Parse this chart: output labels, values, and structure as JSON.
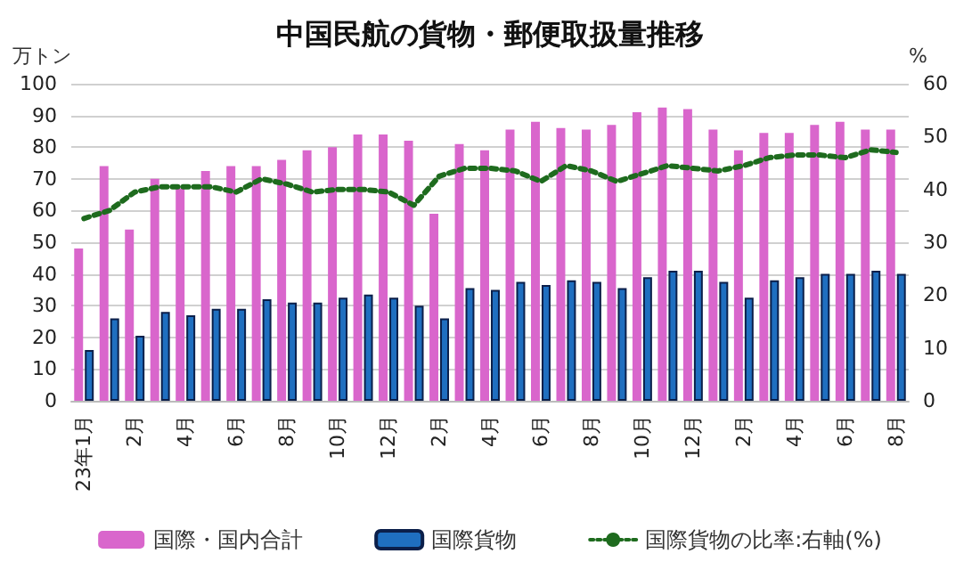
{
  "chart_data": {
    "type": "bar",
    "title": "中国民航の貨物・郵便取扱量推移",
    "ylabel": "万トン",
    "y2label": "%",
    "categories": [
      "23年1月",
      null,
      "2月",
      null,
      "4月",
      null,
      "6月",
      null,
      "8月",
      null,
      "10月",
      null,
      "12月",
      null,
      "2月",
      null,
      "4月",
      null,
      "6月",
      null,
      "8月",
      null,
      "10月",
      null,
      "12月",
      null,
      "2月",
      null,
      "4月",
      null,
      "6月",
      null,
      "8月"
    ],
    "series": [
      {
        "name": "国際・国内合計",
        "color": "#d966cc",
        "values": [
          48,
          74,
          54,
          70,
          67,
          72.5,
          74,
          74,
          76,
          79,
          80,
          84,
          84,
          82,
          59,
          81,
          79,
          85.5,
          88,
          86,
          85.5,
          87,
          91,
          92.5,
          92,
          85.5,
          79,
          84.5,
          84.5,
          87,
          88,
          85.5,
          85.5
        ]
      },
      {
        "name": "国際貨物",
        "color": "#1f6fc0",
        "values": [
          16,
          26,
          20.5,
          28,
          27,
          29,
          29,
          32,
          31,
          31,
          32.5,
          33.5,
          32.5,
          30,
          26,
          35.5,
          35,
          37.5,
          36.5,
          38,
          37.5,
          35.5,
          39,
          41,
          41,
          37.5,
          32.5,
          38,
          39,
          40,
          40,
          41,
          40
        ]
      },
      {
        "name": "国際貨物の比率:右軸(%)",
        "type": "line",
        "axis": "y2",
        "color": "#1e6b1e",
        "line_style": "dotted",
        "marker": "none",
        "values": [
          34.5,
          36,
          39.5,
          40.5,
          40.5,
          40.5,
          39.5,
          42,
          41,
          39.5,
          40,
          40,
          39.5,
          37,
          42.5,
          44,
          44,
          43.5,
          41.5,
          44.5,
          43.5,
          41.5,
          43,
          44.5,
          44,
          43.5,
          44.5,
          46,
          46.5,
          46.5,
          46,
          47.5,
          47
        ]
      }
    ],
    "ylim": [
      0,
      100
    ],
    "yticks": [
      0,
      10,
      20,
      30,
      40,
      50,
      60,
      70,
      80,
      90,
      100
    ],
    "y2lim": [
      0,
      60
    ],
    "y2ticks": [
      0,
      10,
      20,
      30,
      40,
      50,
      60
    ],
    "grid": "y",
    "legend": "bottom"
  }
}
